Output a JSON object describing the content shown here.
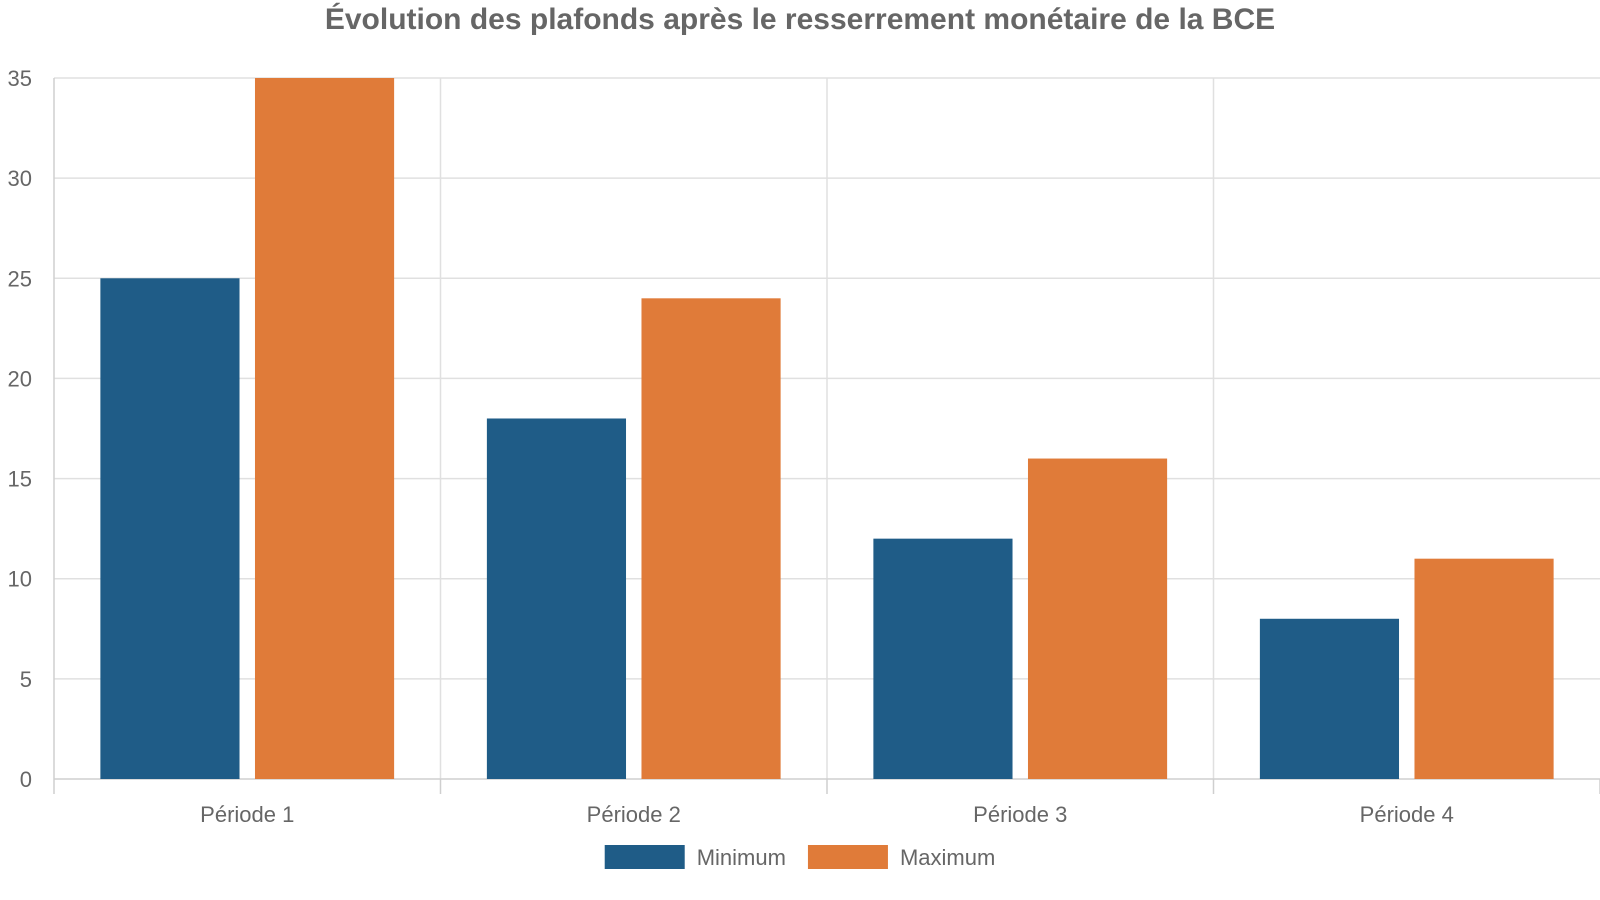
{
  "chart_data": {
    "type": "bar",
    "title": "Évolution des plafonds après le resserrement monétaire de la BCE",
    "xlabel": "",
    "ylabel": "",
    "categories": [
      "Période 1",
      "Période 2",
      "Période 3",
      "Période 4"
    ],
    "series": [
      {
        "name": "Minimum",
        "values": [
          25,
          18,
          12,
          8
        ],
        "color": "#1f5c87"
      },
      {
        "name": "Maximum",
        "values": [
          35,
          24,
          16,
          11
        ],
        "color": "#e07b39"
      }
    ],
    "ylim": [
      0,
      35
    ],
    "yticks": [
      0,
      5,
      10,
      15,
      20,
      25,
      30,
      35
    ],
    "grid": true,
    "legend_position": "bottom-center"
  }
}
